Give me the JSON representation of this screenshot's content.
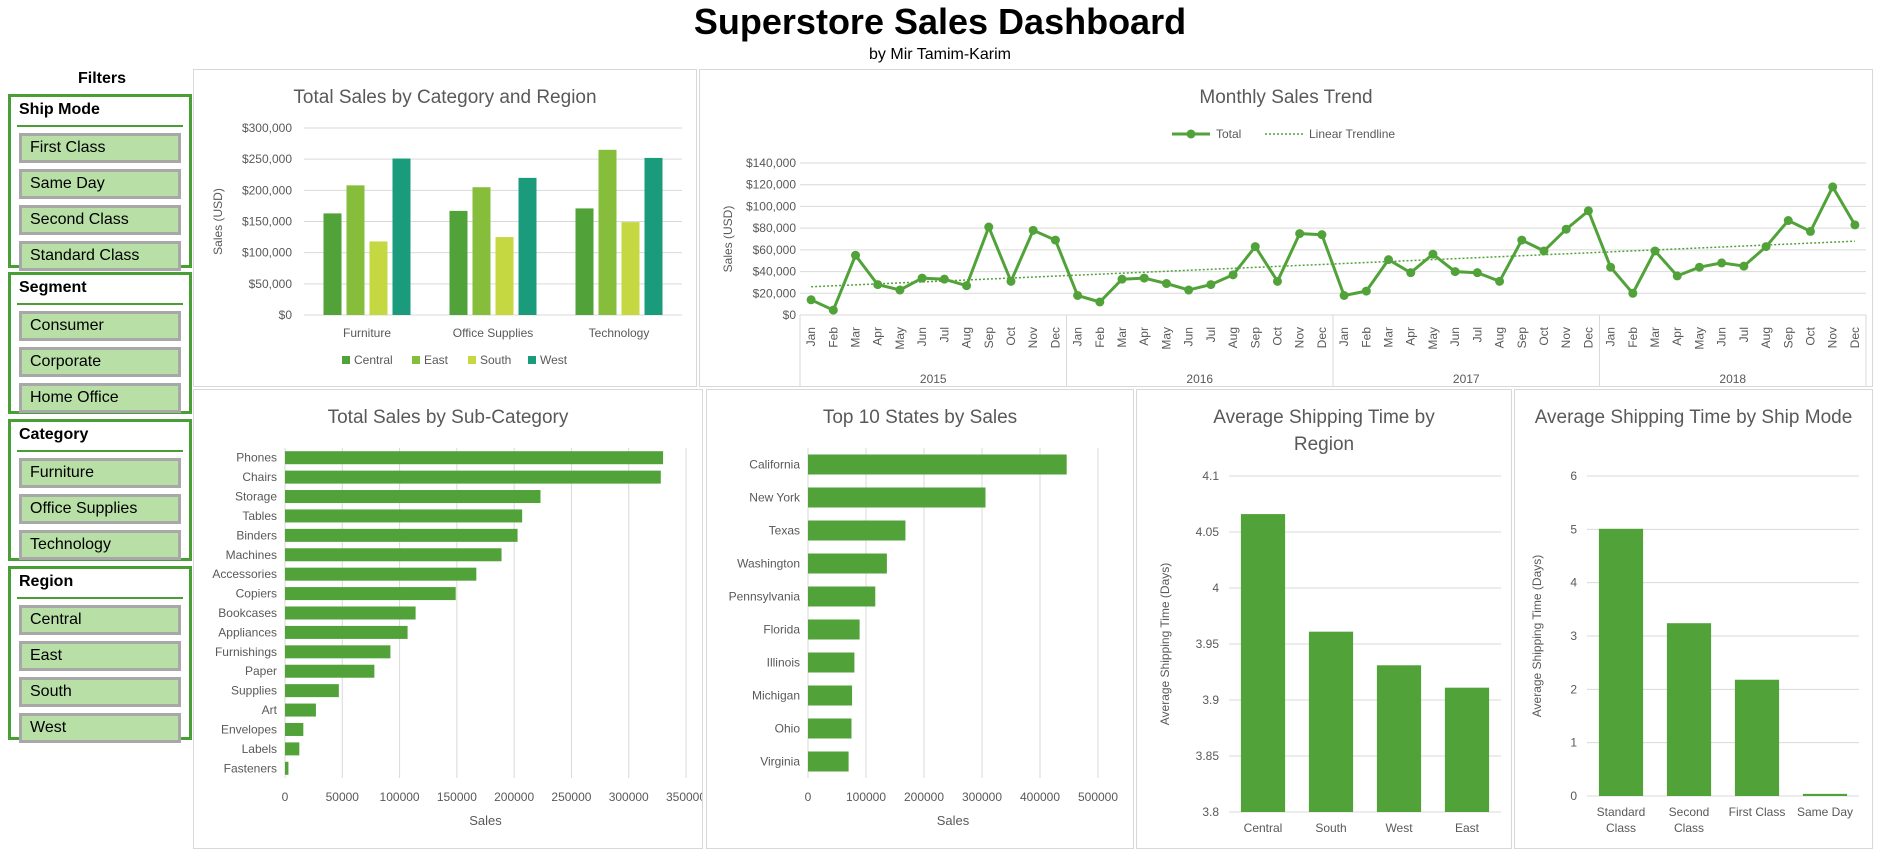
{
  "header": {
    "title": "Superstore Sales Dashboard",
    "subtitle": "by Mir Tamim-Karim"
  },
  "filters": {
    "title": "Filters",
    "slicers": [
      {
        "name": "Ship Mode",
        "items": [
          "First Class",
          "Same Day",
          "Second Class",
          "Standard Class"
        ]
      },
      {
        "name": "Segment",
        "items": [
          "Consumer",
          "Corporate",
          "Home Office"
        ]
      },
      {
        "name": "Category",
        "items": [
          "Furniture",
          "Office Supplies",
          "Technology"
        ]
      },
      {
        "name": "Region",
        "items": [
          "Central",
          "East",
          "South",
          "West"
        ]
      }
    ]
  },
  "colors": {
    "green": "#52a23a",
    "central": "#52a23a",
    "east": "#86be3c",
    "south": "#c6d841",
    "west": "#1a9b7c",
    "grid": "#d9d9d9",
    "text": "#595959"
  },
  "chart_data": [
    {
      "id": "category_region",
      "type": "bar",
      "title": "Total Sales by Category and Region",
      "ylabel": "Sales (USD)",
      "xlabel": "",
      "categories": [
        "Furniture",
        "Office Supplies",
        "Technology"
      ],
      "series": [
        {
          "name": "Central",
          "values": [
            163000,
            167000,
            171000
          ]
        },
        {
          "name": "East",
          "values": [
            208000,
            205000,
            265000
          ]
        },
        {
          "name": "South",
          "values": [
            118000,
            125000,
            149000
          ]
        },
        {
          "name": "West",
          "values": [
            251000,
            220000,
            252000
          ]
        }
      ],
      "ylim": [
        0,
        300000
      ],
      "yticks": [
        "$0",
        "$50,000",
        "$100,000",
        "$150,000",
        "$200,000",
        "$250,000",
        "$300,000"
      ],
      "legend": "bottom",
      "grid": true
    },
    {
      "id": "monthly_trend",
      "type": "line",
      "title": "Monthly Sales Trend",
      "ylabel": "Sales (USD)",
      "legend_entries": [
        "Total",
        "Linear Trendline"
      ],
      "legend": "top",
      "months": [
        "Jan",
        "Feb",
        "Mar",
        "Apr",
        "May",
        "Jun",
        "Jul",
        "Aug",
        "Sep",
        "Oct",
        "Nov",
        "Dec"
      ],
      "years": [
        "2015",
        "2016",
        "2017",
        "2018"
      ],
      "x": [
        "2015-01",
        "2015-02",
        "2015-03",
        "2015-04",
        "2015-05",
        "2015-06",
        "2015-07",
        "2015-08",
        "2015-09",
        "2015-10",
        "2015-11",
        "2015-12",
        "2016-01",
        "2016-02",
        "2016-03",
        "2016-04",
        "2016-05",
        "2016-06",
        "2016-07",
        "2016-08",
        "2016-09",
        "2016-10",
        "2016-11",
        "2016-12",
        "2017-01",
        "2017-02",
        "2017-03",
        "2017-04",
        "2017-05",
        "2017-06",
        "2017-07",
        "2017-08",
        "2017-09",
        "2017-10",
        "2017-11",
        "2017-12",
        "2018-01",
        "2018-02",
        "2018-03",
        "2018-04",
        "2018-05",
        "2018-06",
        "2018-07",
        "2018-08",
        "2018-09",
        "2018-10",
        "2018-11",
        "2018-12"
      ],
      "series": [
        {
          "name": "Total",
          "values": [
            14000,
            4500,
            55000,
            28000,
            23000,
            34000,
            33000,
            27000,
            81000,
            31000,
            78000,
            69000,
            18000,
            12000,
            33000,
            34000,
            29000,
            23000,
            28000,
            37000,
            63000,
            31000,
            75000,
            74000,
            18000,
            22000,
            51000,
            39000,
            56000,
            40000,
            39000,
            31000,
            69000,
            59000,
            79000,
            96000,
            44000,
            20000,
            59000,
            36000,
            44000,
            48000,
            45000,
            63000,
            87000,
            77000,
            118000,
            83000
          ]
        }
      ],
      "trendline": [
        26000,
        68000
      ],
      "ylim": [
        0,
        140000
      ],
      "yticks": [
        "$0",
        "$20,000",
        "$40,000",
        "$60,000",
        "$80,000",
        "$100,000",
        "$120,000",
        "$140,000"
      ],
      "grid": true
    },
    {
      "id": "subcategory",
      "type": "bar",
      "orientation": "horizontal",
      "title": "Total Sales by Sub-Category",
      "xlabel": "Sales",
      "categories": [
        "Phones",
        "Chairs",
        "Storage",
        "Tables",
        "Binders",
        "Machines",
        "Accessories",
        "Copiers",
        "Bookcases",
        "Appliances",
        "Furnishings",
        "Paper",
        "Supplies",
        "Art",
        "Envelopes",
        "Labels",
        "Fasteners"
      ],
      "values": [
        330000,
        328000,
        223000,
        207000,
        203000,
        189000,
        167000,
        149000,
        114000,
        107000,
        92000,
        78000,
        47000,
        27000,
        16000,
        12500,
        3000
      ],
      "xlim": [
        0,
        350000
      ],
      "xticks": [
        "0",
        "50000",
        "100000",
        "150000",
        "200000",
        "250000",
        "300000",
        "350000"
      ],
      "grid": true
    },
    {
      "id": "states",
      "type": "bar",
      "orientation": "horizontal",
      "title": "Top 10 States by Sales",
      "xlabel": "Sales",
      "categories": [
        "California",
        "New York",
        "Texas",
        "Washington",
        "Pennsylvania",
        "Florida",
        "Illinois",
        "Michigan",
        "Ohio",
        "Virginia"
      ],
      "values": [
        446000,
        306000,
        168000,
        136000,
        116000,
        89000,
        80000,
        76000,
        75000,
        70000
      ],
      "xlim": [
        0,
        500000
      ],
      "xticks": [
        "0",
        "100000",
        "200000",
        "300000",
        "400000",
        "500000"
      ],
      "grid": true
    },
    {
      "id": "ship_region",
      "type": "bar",
      "title": "Average Shipping Time by Region",
      "ylabel": "Average Shipping Time (Days)",
      "categories": [
        "Central",
        "South",
        "West",
        "East"
      ],
      "values": [
        4.066,
        3.961,
        3.931,
        3.911
      ],
      "ylim": [
        3.8,
        4.1
      ],
      "yticks": [
        "3.8",
        "3.85",
        "3.9",
        "3.95",
        "4",
        "4.05",
        "4.1"
      ],
      "grid": true
    },
    {
      "id": "ship_mode",
      "type": "bar",
      "title": "Average Shipping Time by Ship Mode",
      "ylabel": "Average Shipping Time (Days)",
      "categories": [
        "Standard Class",
        "Second Class",
        "First Class",
        "Same Day"
      ],
      "values": [
        5.01,
        3.24,
        2.18,
        0.04
      ],
      "ylim": [
        0,
        6
      ],
      "yticks": [
        "0",
        "1",
        "2",
        "3",
        "4",
        "5",
        "6"
      ],
      "grid": true
    }
  ]
}
